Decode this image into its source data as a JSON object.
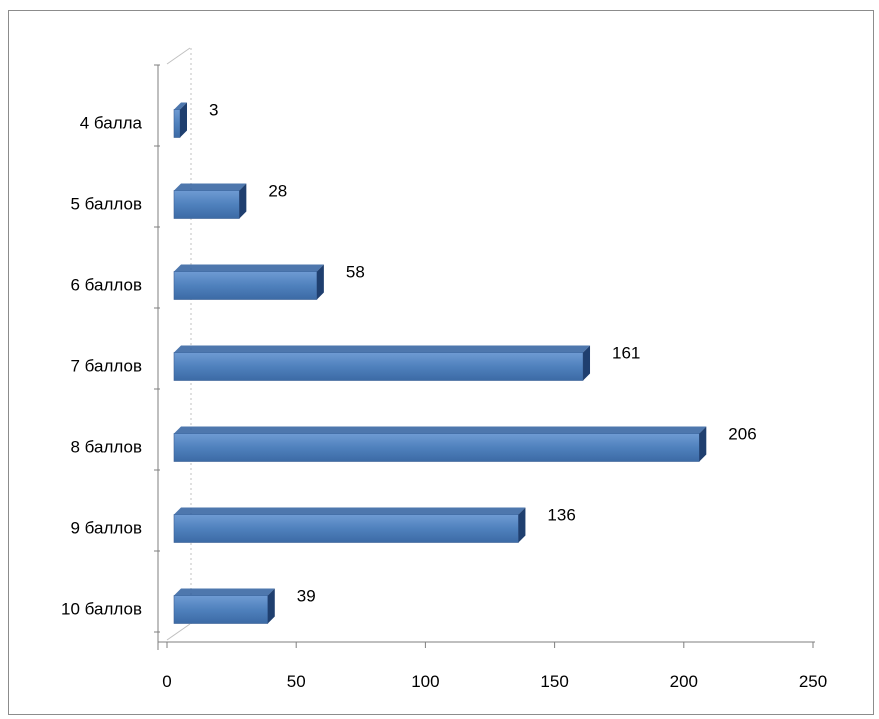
{
  "chart_data": {
    "type": "bar",
    "orientation": "horizontal",
    "style": "3d",
    "categories": [
      "4 балла",
      "5 баллов",
      "6 баллов",
      "7 баллов",
      "8 баллов",
      "9 баллов",
      "10 баллов"
    ],
    "values": [
      3,
      28,
      58,
      161,
      206,
      136,
      39
    ],
    "xlim": [
      0,
      250
    ],
    "xticks": [
      0,
      50,
      100,
      150,
      200,
      250
    ],
    "grid": false,
    "legend": "none",
    "colors": {
      "bar_front": "#4f81bd",
      "bar_top": "#2f5f9f",
      "bar_side": "#1f3f6f",
      "frame": "#8c8c8c",
      "axis": "#7f7f7f"
    }
  }
}
